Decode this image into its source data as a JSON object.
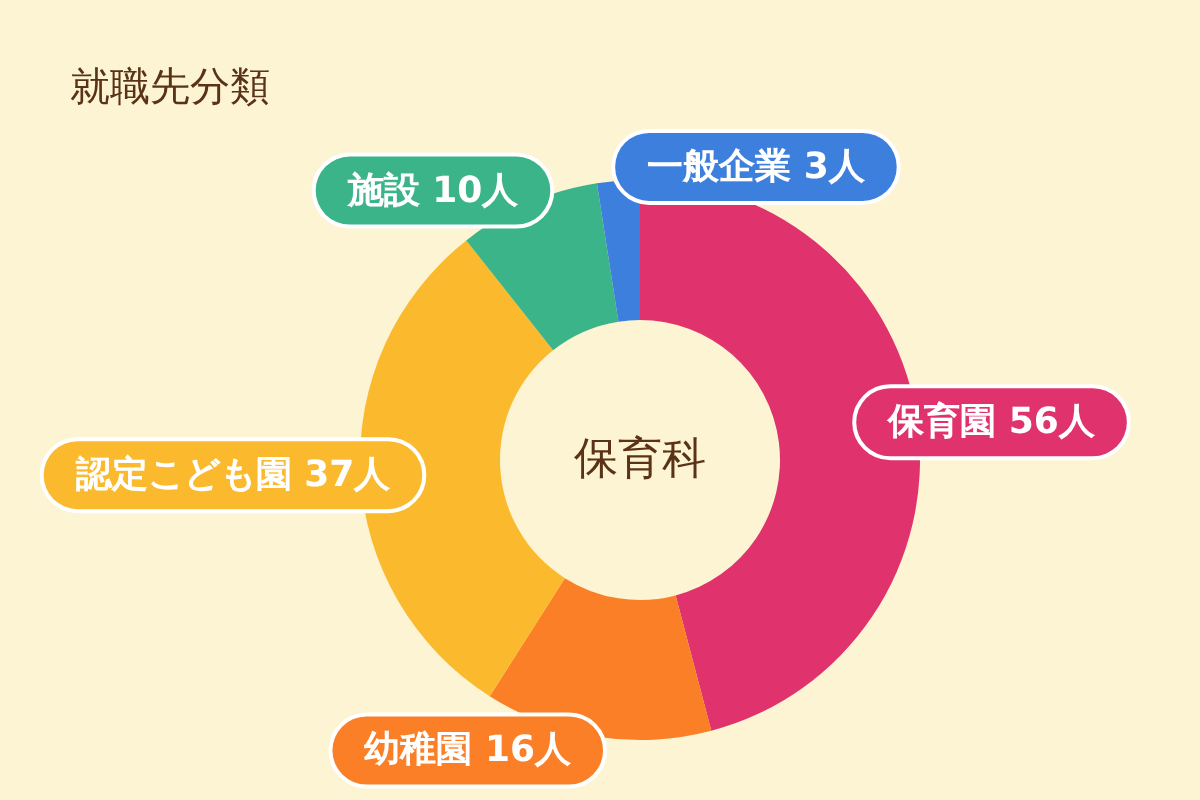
{
  "chart_data": {
    "type": "donut",
    "title": "就職先分類",
    "categories": [
      "保育園",
      "幼稚園",
      "認定こども園",
      "施設",
      "一般企業"
    ],
    "values": [
      56,
      16,
      37,
      10,
      3
    ],
    "value_labels": [
      "56人",
      "16人",
      "37人",
      "10人",
      "3人"
    ],
    "colors": [
      "#e0336e",
      "#fb7f26",
      "#fbba2e",
      "#3bb48a",
      "#3d7fdc"
    ],
    "annotations": [
      "保育科"
    ]
  }
}
